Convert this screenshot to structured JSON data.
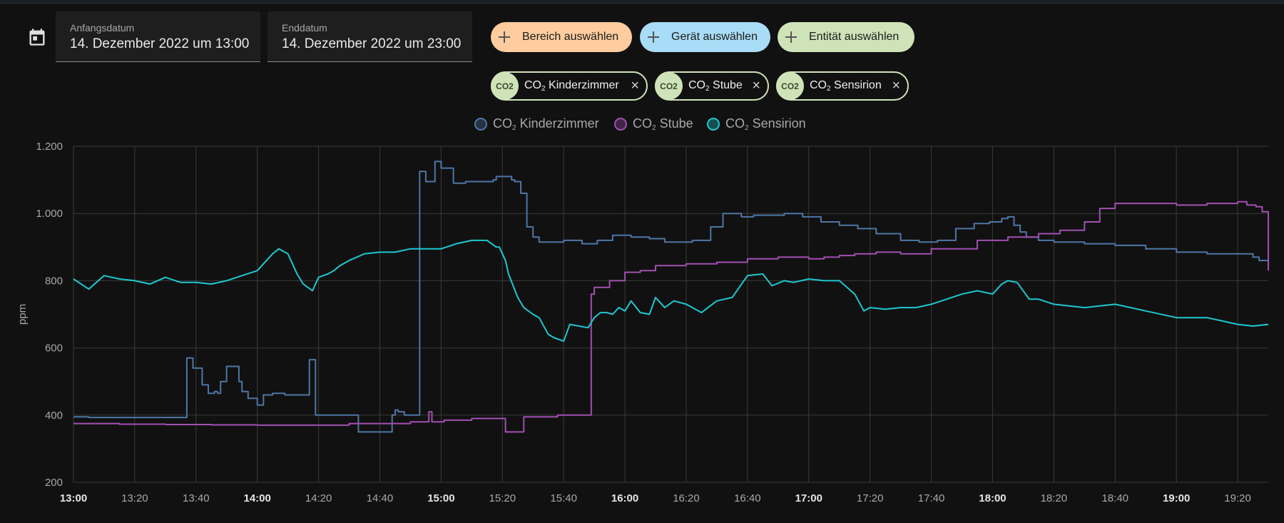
{
  "dates": {
    "start_label": "Anfangsdatum",
    "start_value": "14. Dezember 2022 um 13:00",
    "end_label": "Enddatum",
    "end_value": "14. Dezember 2022 um 23:00"
  },
  "targets": [
    {
      "label": "Bereich auswählen",
      "color": "#fecc9e"
    },
    {
      "label": "Gerät auswählen",
      "color": "#a9dcf6"
    },
    {
      "label": "Entität auswählen",
      "color": "#cfe3b8"
    }
  ],
  "entities": [
    {
      "badge": "CO2",
      "prefix": "CO",
      "sub": "2",
      "name": "Kinderzimmer"
    },
    {
      "badge": "CO2",
      "prefix": "CO",
      "sub": "2",
      "name": "Stube"
    },
    {
      "badge": "CO2",
      "prefix": "CO",
      "sub": "2",
      "name": "Sensirion"
    }
  ],
  "legend": [
    {
      "prefix": "CO",
      "sub": "2",
      "name": "Kinderzimmer",
      "color": "#4e76a6"
    },
    {
      "prefix": "CO",
      "sub": "2",
      "name": "Stube",
      "color": "#a24fb1"
    },
    {
      "prefix": "CO",
      "sub": "2",
      "name": "Sensirion",
      "color": "#1ec8d0"
    }
  ],
  "chart_data": {
    "type": "line",
    "ylabel": "ppm",
    "ylim": [
      200,
      1200
    ],
    "yticks": [
      200,
      400,
      600,
      800,
      1000,
      1200
    ],
    "ytick_labels": [
      "200",
      "400",
      "600",
      "800",
      "1.000",
      "1.200"
    ],
    "xlim": [
      0,
      390
    ],
    "xticks": [
      {
        "t": 0,
        "label": "13:00",
        "bold": true
      },
      {
        "t": 20,
        "label": "13:20",
        "bold": false
      },
      {
        "t": 40,
        "label": "13:40",
        "bold": false
      },
      {
        "t": 60,
        "label": "14:00",
        "bold": true
      },
      {
        "t": 80,
        "label": "14:20",
        "bold": false
      },
      {
        "t": 100,
        "label": "14:40",
        "bold": false
      },
      {
        "t": 120,
        "label": "15:00",
        "bold": true
      },
      {
        "t": 140,
        "label": "15:20",
        "bold": false
      },
      {
        "t": 160,
        "label": "15:40",
        "bold": false
      },
      {
        "t": 180,
        "label": "16:00",
        "bold": true
      },
      {
        "t": 200,
        "label": "16:20",
        "bold": false
      },
      {
        "t": 220,
        "label": "16:40",
        "bold": false
      },
      {
        "t": 240,
        "label": "17:00",
        "bold": true
      },
      {
        "t": 260,
        "label": "17:20",
        "bold": false
      },
      {
        "t": 280,
        "label": "17:40",
        "bold": false
      },
      {
        "t": 300,
        "label": "18:00",
        "bold": true
      },
      {
        "t": 320,
        "label": "18:20",
        "bold": false
      },
      {
        "t": 340,
        "label": "18:40",
        "bold": false
      },
      {
        "t": 360,
        "label": "19:00",
        "bold": true
      },
      {
        "t": 380,
        "label": "19:20",
        "bold": false
      }
    ],
    "series": [
      {
        "name": "CO2 Kinderzimmer",
        "color": "#4e76a6",
        "step": true,
        "x": [
          0,
          5,
          30,
          35,
          37,
          39,
          42,
          44,
          46,
          47,
          48,
          50,
          54,
          55,
          57,
          60,
          61,
          62,
          65,
          69,
          73,
          77,
          79,
          92,
          93,
          94,
          97,
          104,
          105,
          106,
          108,
          109,
          111,
          112,
          113,
          115,
          116,
          118,
          120,
          124,
          128,
          133,
          137,
          138,
          143,
          144,
          146,
          148,
          150,
          152,
          155,
          160,
          166,
          171,
          176,
          182,
          188,
          193,
          202,
          208,
          212,
          218,
          222,
          227,
          232,
          238,
          244,
          250,
          256,
          262,
          270,
          276,
          282,
          288,
          294,
          299,
          303,
          305,
          307,
          309,
          311,
          315,
          320,
          330,
          340,
          350,
          360,
          370,
          380,
          385,
          387,
          390
        ],
        "y": [
          395,
          393,
          393,
          393,
          570,
          540,
          490,
          465,
          470,
          465,
          500,
          545,
          500,
          470,
          450,
          430,
          430,
          460,
          465,
          460,
          460,
          565,
          400,
          400,
          350,
          350,
          350,
          400,
          415,
          410,
          400,
          400,
          400,
          400,
          1125,
          1095,
          1095,
          1155,
          1135,
          1090,
          1095,
          1095,
          1100,
          1110,
          1100,
          1095,
          1060,
          960,
          930,
          915,
          915,
          920,
          910,
          920,
          935,
          930,
          925,
          915,
          920,
          960,
          1000,
          990,
          995,
          995,
          1000,
          990,
          975,
          965,
          955,
          940,
          920,
          915,
          920,
          955,
          970,
          975,
          985,
          990,
          965,
          945,
          930,
          920,
          915,
          910,
          905,
          895,
          885,
          880,
          880,
          870,
          860,
          865
        ]
      },
      {
        "name": "CO2 Stube",
        "color": "#a24fb1",
        "step": true,
        "x": [
          0,
          15,
          30,
          45,
          60,
          75,
          90,
          110,
          115,
          116,
          117,
          121,
          130,
          139,
          140,
          141,
          142,
          146,
          147,
          150,
          158,
          168,
          169,
          170,
          175,
          180,
          185,
          190,
          200,
          210,
          220,
          230,
          240,
          245,
          250,
          255,
          262,
          270,
          280,
          295,
          305,
          315,
          322,
          330,
          335,
          340,
          350,
          360,
          370,
          380,
          383,
          386,
          388,
          390
        ],
        "y": [
          375,
          373,
          372,
          371,
          370,
          370,
          375,
          380,
          380,
          410,
          380,
          385,
          390,
          390,
          390,
          350,
          350,
          350,
          395,
          395,
          400,
          400,
          760,
          780,
          800,
          825,
          830,
          845,
          850,
          855,
          865,
          870,
          865,
          870,
          875,
          880,
          885,
          880,
          895,
          920,
          930,
          940,
          950,
          975,
          1015,
          1030,
          1030,
          1025,
          1030,
          1035,
          1025,
          1020,
          1005,
          830
        ]
      },
      {
        "name": "CO2 Sensirion",
        "color": "#1ec8d0",
        "step": false,
        "x": [
          0,
          5,
          10,
          15,
          20,
          25,
          30,
          35,
          40,
          45,
          50,
          55,
          60,
          63,
          65,
          67,
          70,
          73,
          75,
          78,
          80,
          83,
          85,
          87,
          90,
          95,
          100,
          105,
          110,
          115,
          120,
          125,
          130,
          135,
          138,
          139,
          140,
          141,
          142,
          145,
          147,
          150,
          152,
          155,
          157,
          160,
          162,
          165,
          168,
          170,
          172,
          174,
          176,
          178,
          180,
          182,
          185,
          188,
          190,
          193,
          196,
          200,
          205,
          210,
          215,
          220,
          225,
          228,
          232,
          235,
          240,
          245,
          250,
          255,
          258,
          260,
          265,
          270,
          275,
          280,
          290,
          295,
          300,
          303,
          305,
          308,
          312,
          315,
          320,
          330,
          340,
          350,
          360,
          370,
          375,
          380,
          385,
          390
        ],
        "y": [
          805,
          775,
          815,
          805,
          800,
          790,
          810,
          795,
          795,
          790,
          800,
          815,
          830,
          860,
          880,
          895,
          880,
          820,
          790,
          770,
          810,
          820,
          830,
          845,
          860,
          880,
          885,
          885,
          895,
          895,
          895,
          910,
          920,
          920,
          900,
          900,
          880,
          860,
          820,
          750,
          720,
          700,
          690,
          640,
          630,
          620,
          670,
          665,
          660,
          690,
          705,
          705,
          700,
          720,
          710,
          740,
          705,
          700,
          750,
          720,
          740,
          730,
          705,
          740,
          750,
          815,
          820,
          785,
          800,
          795,
          805,
          800,
          800,
          760,
          710,
          720,
          715,
          720,
          720,
          730,
          760,
          770,
          760,
          790,
          800,
          795,
          745,
          745,
          730,
          720,
          730,
          710,
          690,
          690,
          680,
          670,
          665,
          670
        ]
      }
    ]
  }
}
